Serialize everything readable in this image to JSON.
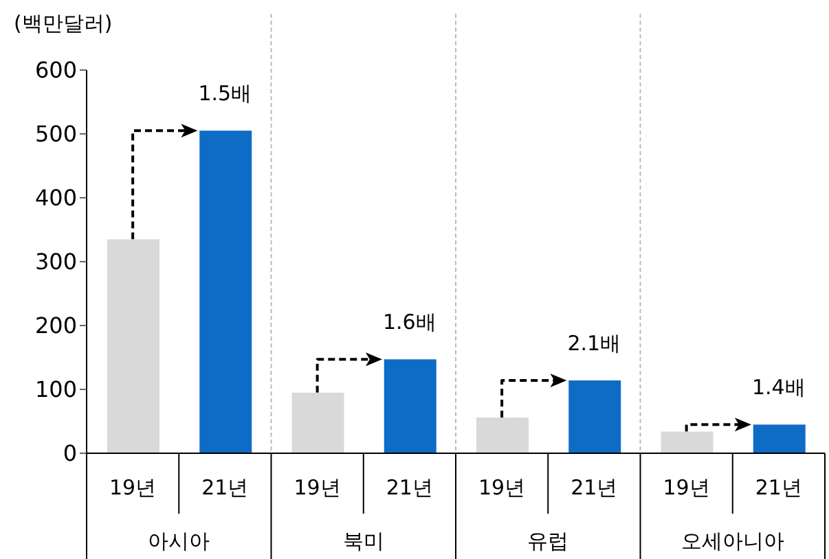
{
  "chart_data": {
    "type": "bar",
    "ylabel": "(백만달러)",
    "categories": [
      "아시아",
      "북미",
      "유럽",
      "오세아니아"
    ],
    "series": [
      {
        "name": "19년",
        "color": "#d9d9d9",
        "values": [
          335,
          95,
          56,
          34
        ]
      },
      {
        "name": "21년",
        "color": "#0f6cc6",
        "values": [
          505,
          147,
          114,
          45
        ]
      }
    ],
    "ylim": [
      0,
      600
    ],
    "yticks": [
      0,
      100,
      200,
      300,
      400,
      500,
      600
    ],
    "annotations": [
      "1.5배",
      "1.6배",
      "2.1배",
      "1.4배"
    ]
  }
}
